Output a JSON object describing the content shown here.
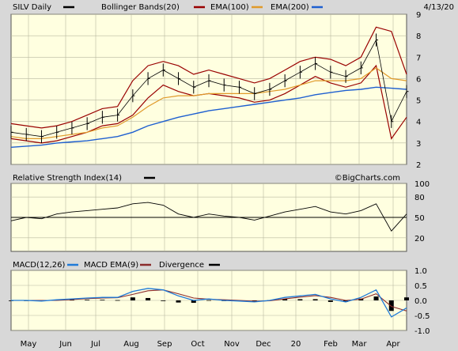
{
  "chart_data": {
    "type": "line",
    "date": "4/13/20",
    "watermark": "©BigCharts.com",
    "x_tick_labels": [
      "May",
      "Jun",
      "Jul",
      "Aug",
      "Sep",
      "Oct",
      "Nov",
      "Dec",
      "20",
      "Feb",
      "Mar",
      "Apr"
    ],
    "colors": {
      "bg": "#ffffe0",
      "bollinger": "#990000",
      "ema100": "#e09a2a",
      "ema200": "#1e5fd0",
      "macd": "#1e7ad8",
      "macd_ema": "#8b2b2b",
      "divergence": "#000000"
    },
    "price_panel": {
      "header": {
        "symbol": "SILV Daily",
        "bollinger": "Bollinger Bands(20)",
        "ema100": "EMA(100)",
        "ema200": "EMA(200)"
      },
      "ylim": [
        2,
        9
      ],
      "y_ticks": [
        "2",
        "3",
        "4",
        "5",
        "6",
        "7",
        "8",
        "9"
      ],
      "x": [
        0,
        10,
        20,
        30,
        40,
        50,
        60,
        70,
        80,
        90,
        100,
        110,
        120,
        130,
        140,
        150,
        160,
        170,
        180,
        190,
        200,
        210,
        220,
        230,
        240,
        250,
        260
      ],
      "close": [
        3.5,
        3.4,
        3.3,
        3.5,
        3.7,
        3.9,
        4.2,
        4.3,
        5.2,
        6.0,
        6.4,
        6.0,
        5.6,
        5.9,
        5.7,
        5.6,
        5.3,
        5.5,
        5.9,
        6.3,
        6.7,
        6.3,
        6.1,
        6.5,
        7.8,
        4.0,
        5.4
      ],
      "bb_upper": [
        3.9,
        3.8,
        3.7,
        3.8,
        4.0,
        4.3,
        4.6,
        4.7,
        5.9,
        6.6,
        6.8,
        6.6,
        6.2,
        6.4,
        6.2,
        6.0,
        5.8,
        6.0,
        6.4,
        6.8,
        7.0,
        6.9,
        6.6,
        7.0,
        8.4,
        8.2,
        6.2
      ],
      "bb_lower": [
        3.2,
        3.1,
        3.0,
        3.1,
        3.3,
        3.5,
        3.8,
        3.9,
        4.3,
        5.1,
        5.7,
        5.4,
        5.2,
        5.3,
        5.2,
        5.1,
        4.9,
        5.0,
        5.3,
        5.7,
        6.1,
        5.8,
        5.6,
        5.8,
        6.6,
        3.2,
        4.2
      ],
      "ema100": [
        3.3,
        3.2,
        3.2,
        3.3,
        3.4,
        3.5,
        3.7,
        3.8,
        4.2,
        4.7,
        5.1,
        5.2,
        5.2,
        5.3,
        5.3,
        5.3,
        5.3,
        5.4,
        5.5,
        5.7,
        5.9,
        5.9,
        5.9,
        6.0,
        6.5,
        6.0,
        5.9
      ],
      "ema200": [
        2.8,
        2.85,
        2.9,
        3.0,
        3.05,
        3.1,
        3.2,
        3.3,
        3.5,
        3.8,
        4.0,
        4.2,
        4.35,
        4.5,
        4.6,
        4.7,
        4.8,
        4.9,
        5.0,
        5.1,
        5.25,
        5.35,
        5.45,
        5.5,
        5.6,
        5.55,
        5.5
      ]
    },
    "rsi_panel": {
      "header": {
        "name": "Relative Strength Index(14)"
      },
      "ylim": [
        0,
        100
      ],
      "y_ticks": [
        "20",
        "50",
        "80",
        "100"
      ],
      "reference": 50,
      "x": [
        0,
        10,
        20,
        30,
        40,
        50,
        60,
        70,
        80,
        90,
        100,
        110,
        120,
        130,
        140,
        150,
        160,
        170,
        180,
        190,
        200,
        210,
        220,
        230,
        240,
        250,
        260
      ],
      "values": [
        45,
        50,
        48,
        55,
        58,
        60,
        62,
        64,
        70,
        72,
        68,
        55,
        50,
        55,
        52,
        50,
        46,
        52,
        58,
        62,
        66,
        58,
        55,
        60,
        70,
        30,
        55
      ]
    },
    "macd_panel": {
      "header": {
        "macd": "MACD(12,26)",
        "macd_ema": "MACD EMA(9)",
        "divergence": "Divergence"
      },
      "ylim": [
        -1.0,
        1.0
      ],
      "y_ticks": [
        "1.0",
        "0.5",
        "0.0",
        "-0.5",
        "-1.0"
      ],
      "x": [
        0,
        10,
        20,
        30,
        40,
        50,
        60,
        70,
        80,
        90,
        100,
        110,
        120,
        130,
        140,
        150,
        160,
        170,
        180,
        190,
        200,
        210,
        220,
        230,
        240,
        250,
        260
      ],
      "macd": [
        0.0,
        0.0,
        -0.02,
        0.02,
        0.05,
        0.08,
        0.1,
        0.1,
        0.3,
        0.4,
        0.35,
        0.15,
        0.0,
        0.05,
        0.0,
        -0.02,
        -0.05,
        0.0,
        0.1,
        0.15,
        0.2,
        0.05,
        -0.05,
        0.1,
        0.35,
        -0.55,
        -0.25
      ],
      "macd_ema": [
        0.0,
        0.0,
        0.0,
        0.0,
        0.03,
        0.06,
        0.08,
        0.09,
        0.2,
        0.32,
        0.35,
        0.22,
        0.08,
        0.04,
        0.02,
        0.0,
        -0.03,
        -0.01,
        0.05,
        0.11,
        0.16,
        0.1,
        0.0,
        0.04,
        0.22,
        -0.2,
        -0.35
      ]
    }
  }
}
